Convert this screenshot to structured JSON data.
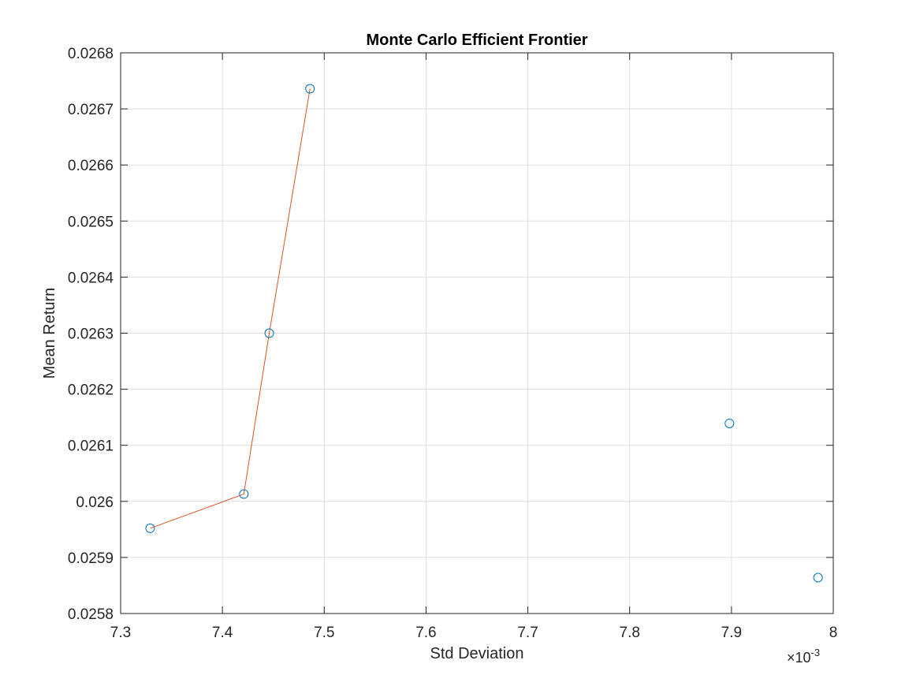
{
  "chart_data": {
    "type": "scatter",
    "title": "Monte Carlo Efficient Frontier",
    "xlabel": "Std Deviation",
    "ylabel": "Mean Return",
    "x_exponent_label": "×10",
    "x_exponent": "-3",
    "xlim": [
      7.3,
      8.0
    ],
    "ylim": [
      0.0258,
      0.0268
    ],
    "x_ticks": [
      "7.3",
      "7.4",
      "7.5",
      "7.6",
      "7.7",
      "7.8",
      "7.9",
      "8"
    ],
    "y_ticks": [
      "0.0258",
      "0.0259",
      "0.026",
      "0.0261",
      "0.0262",
      "0.0263",
      "0.0264",
      "0.0265",
      "0.0266",
      "0.0267",
      "0.0268"
    ],
    "grid": true,
    "series": [
      {
        "type": "scatter",
        "marker": "circle-open",
        "color": "#0072BD",
        "x": [
          7.329,
          7.421,
          7.446,
          7.486,
          7.898,
          7.985
        ],
        "y": [
          0.025952,
          0.026013,
          0.0263,
          0.026736,
          0.026139,
          0.025864
        ]
      },
      {
        "type": "line",
        "color": "#D95319",
        "x": [
          7.329,
          7.421,
          7.446,
          7.486
        ],
        "y": [
          0.025952,
          0.026013,
          0.0263,
          0.026736
        ]
      }
    ]
  }
}
